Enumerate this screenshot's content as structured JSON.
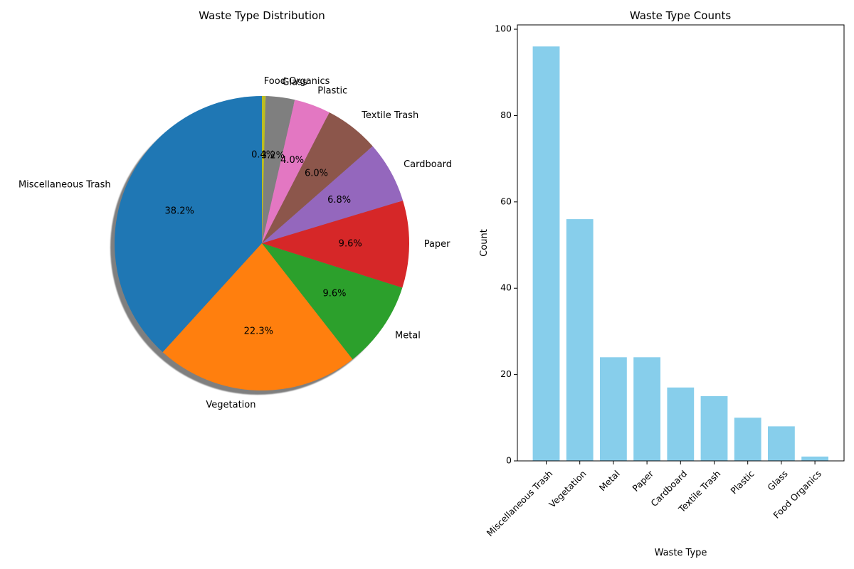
{
  "chart_data": [
    {
      "type": "pie",
      "title": "Waste Type Distribution",
      "shadow": true,
      "start_angle_deg": 90,
      "direction": "counterclockwise",
      "slices": [
        {
          "label": "Miscellaneous Trash",
          "value": 96,
          "pct_label": "38.2%",
          "color": "#1f77b4"
        },
        {
          "label": "Vegetation",
          "value": 56,
          "pct_label": "22.3%",
          "color": "#ff7f0e"
        },
        {
          "label": "Metal",
          "value": 24,
          "pct_label": "9.6%",
          "color": "#2ca02c"
        },
        {
          "label": "Paper",
          "value": 24,
          "pct_label": "9.6%",
          "color": "#d62728"
        },
        {
          "label": "Cardboard",
          "value": 17,
          "pct_label": "6.8%",
          "color": "#9467bd"
        },
        {
          "label": "Textile Trash",
          "value": 15,
          "pct_label": "6.0%",
          "color": "#8c564b"
        },
        {
          "label": "Plastic",
          "value": 10,
          "pct_label": "4.0%",
          "color": "#e377c2"
        },
        {
          "label": "Glass",
          "value": 8,
          "pct_label": "3.2%",
          "color": "#7f7f7f"
        },
        {
          "label": "Food Organics",
          "value": 1,
          "pct_label": "0.4%",
          "color": "#bcbd22"
        }
      ]
    },
    {
      "type": "bar",
      "title": "Waste Type Counts",
      "xlabel": "Waste Type",
      "ylabel": "Count",
      "categories": [
        "Miscellaneous Trash",
        "Vegetation",
        "Metal",
        "Paper",
        "Cardboard",
        "Textile Trash",
        "Plastic",
        "Glass",
        "Food Organics"
      ],
      "values": [
        96,
        56,
        24,
        24,
        17,
        15,
        10,
        8,
        1
      ],
      "ylim": [
        0,
        101
      ],
      "yticks": [
        0,
        20,
        40,
        60,
        80,
        100
      ],
      "bar_color": "#87ceeb",
      "grid": false
    }
  ]
}
